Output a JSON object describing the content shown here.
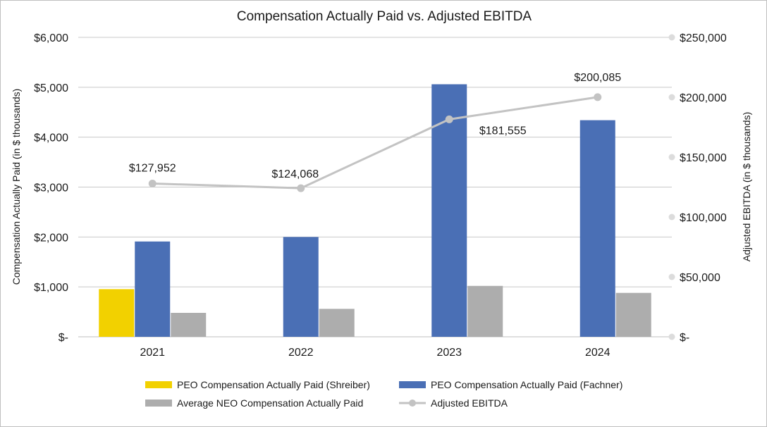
{
  "chart_data": {
    "type": "bar",
    "title": "Compensation Actually Paid vs. Adjusted EBITDA",
    "categories": [
      "2021",
      "2022",
      "2023",
      "2024"
    ],
    "ylabel": "Compensation Actually Paid (in $ thousands)",
    "y2label": "Adjusted EBITDA (in $ thousands)",
    "ylim": [
      0,
      6000
    ],
    "y2lim": [
      0,
      250000
    ],
    "yticks": [
      {
        "value": 0,
        "label": "$-"
      },
      {
        "value": 1000,
        "label": "$1,000"
      },
      {
        "value": 2000,
        "label": "$2,000"
      },
      {
        "value": 3000,
        "label": "$3,000"
      },
      {
        "value": 4000,
        "label": "$4,000"
      },
      {
        "value": 5000,
        "label": "$5,000"
      },
      {
        "value": 6000,
        "label": "$6,000"
      }
    ],
    "y2ticks": [
      {
        "value": 0,
        "label": "$-"
      },
      {
        "value": 50000,
        "label": "$50,000"
      },
      {
        "value": 100000,
        "label": "$100,000"
      },
      {
        "value": 150000,
        "label": "$150,000"
      },
      {
        "value": 200000,
        "label": "$200,000"
      },
      {
        "value": 250000,
        "label": "$250,000"
      }
    ],
    "grid": true,
    "legend_position": "bottom",
    "bar_series": [
      {
        "name": "PEO Compensation Actually Paid (Shreiber)",
        "color": "#f2d100",
        "values": [
          955,
          null,
          null,
          null
        ]
      },
      {
        "name": "PEO Compensation Actually Paid (Fachner)",
        "color": "#4a6fb5",
        "values": [
          1910,
          2000,
          5060,
          4340
        ]
      },
      {
        "name": "Average NEO Compensation Actually Paid",
        "color": "#adadad",
        "values": [
          480,
          560,
          1020,
          880
        ]
      }
    ],
    "line_series": {
      "name": "Adjusted EBITDA",
      "color": "#c3c3c3",
      "axis": "right",
      "values": [
        127952,
        124068,
        181555,
        200085
      ],
      "labels": [
        "$127,952",
        "$124,068",
        "$181,555",
        "$200,085"
      ]
    }
  }
}
